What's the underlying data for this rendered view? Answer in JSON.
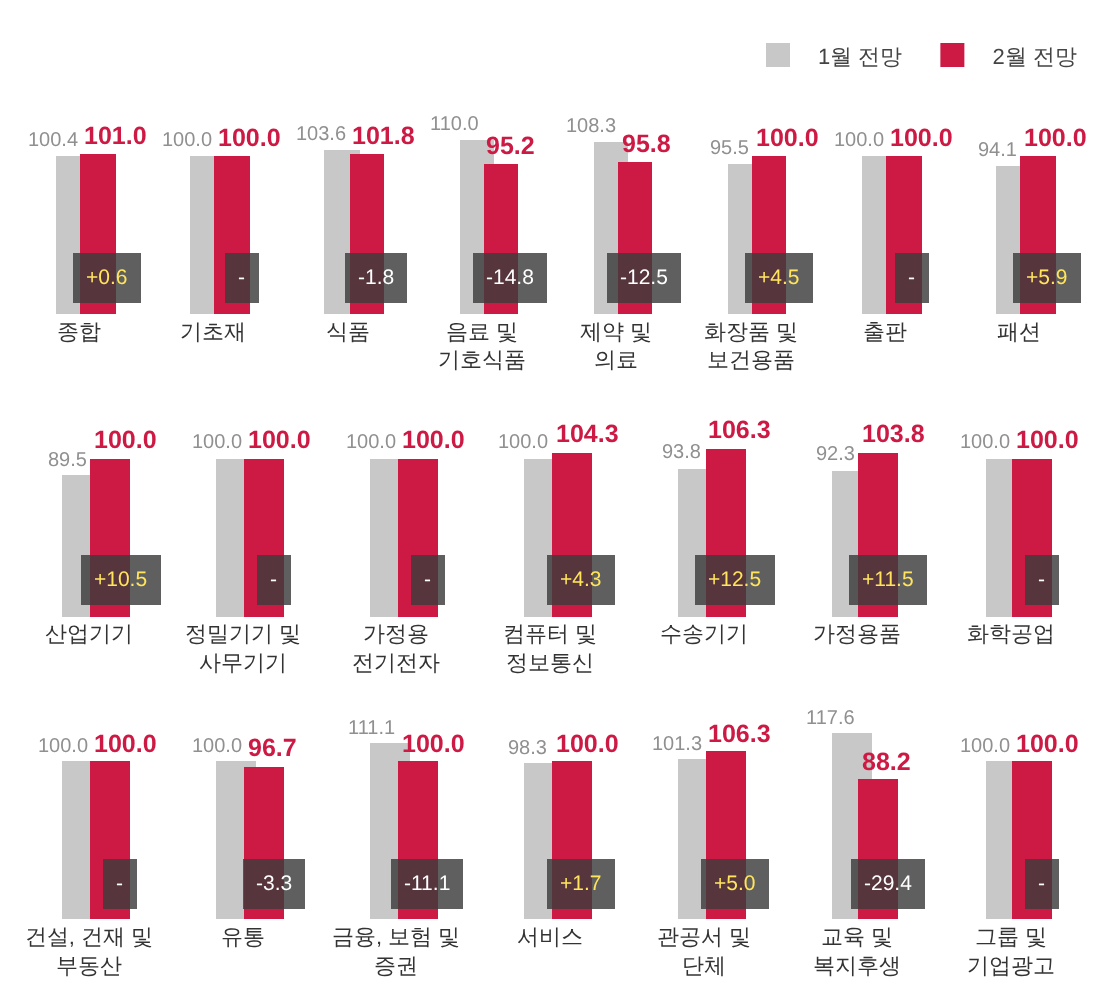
{
  "chart_data": [
    {
      "type": "bar",
      "categories": [
        "종합",
        "기초재",
        "식품",
        "음료 및\n기호식품",
        "제약 및\n의료",
        "화장품 및\n보건용품",
        "출판",
        "패션"
      ],
      "series": [
        {
          "name": "1월 전망",
          "color": "#c8c8c8",
          "values": [
            100.4,
            100.0,
            103.6,
            110.0,
            108.3,
            95.5,
            100.0,
            94.1
          ],
          "value_labels": [
            "100.4",
            "100.0",
            "103.6",
            "110.0",
            "108.3",
            "95.5",
            "100.0",
            "94.1"
          ]
        },
        {
          "name": "2월 전망",
          "color": "#cc1a44",
          "values": [
            101.0,
            100.0,
            101.8,
            95.2,
            95.8,
            100.0,
            100.0,
            100.0
          ],
          "value_labels": [
            "101.0",
            "100.0",
            "101.8",
            "95.2",
            "95.8",
            "100.0",
            "100.0",
            "100.0"
          ]
        }
      ],
      "annotations": [
        "+0.6",
        "-",
        "-1.8",
        "-14.8",
        "-12.5",
        "+4.5",
        "-",
        "+5.9"
      ],
      "legend": "top right",
      "tick_labels": "x"
    },
    {
      "type": "bar",
      "categories": [
        "산업기기",
        "정밀기기 및\n사무기기",
        "가정용\n전기전자",
        "컴퓨터 및\n정보통신",
        "수송기기",
        "가정용품",
        "화학공업"
      ],
      "series": [
        {
          "color": "#c8c8c8",
          "values": [
            89.5,
            100.0,
            100.0,
            100.0,
            93.8,
            92.3,
            100.0
          ],
          "value_labels": [
            "89.5",
            "100.0",
            "100.0",
            "100.0",
            "93.8",
            "92.3",
            "100.0"
          ]
        },
        {
          "color": "#cc1a44",
          "values": [
            100.0,
            100.0,
            100.0,
            104.3,
            106.3,
            103.8,
            100.0
          ],
          "value_labels": [
            "100.0",
            "100.0",
            "100.0",
            "104.3",
            "106.3",
            "103.8",
            "100.0"
          ]
        }
      ],
      "annotations": [
        "+10.5",
        "-",
        "-",
        "+4.3",
        "+12.5",
        "+11.5",
        "-"
      ],
      "tick_labels": "x"
    },
    {
      "type": "bar",
      "categories": [
        "건설, 건재 및\n부동산",
        "유통",
        "금융, 보험 및\n증권",
        "서비스",
        "관공서 및\n단체",
        "교육 및\n복지후생",
        "그룹 및\n기업광고"
      ],
      "series": [
        {
          "color": "#c8c8c8",
          "values": [
            100.0,
            100.0,
            111.1,
            98.3,
            101.3,
            117.6,
            100.0
          ],
          "value_labels": [
            "100.0",
            "100.0",
            "111.1",
            "98.3",
            "101.3",
            "117.6",
            "100.0"
          ]
        },
        {
          "color": "#cc1a44",
          "values": [
            100.0,
            96.7,
            100.0,
            100.0,
            106.3,
            88.2,
            100.0
          ],
          "value_labels": [
            "100.0",
            "96.7",
            "100.0",
            "100.0",
            "106.3",
            "88.2",
            "100.0"
          ]
        }
      ],
      "annotations": [
        "-",
        "-3.3",
        "-11.1",
        "+1.7",
        "+5.0",
        "-29.4",
        "-"
      ],
      "tick_labels": "x"
    }
  ]
}
